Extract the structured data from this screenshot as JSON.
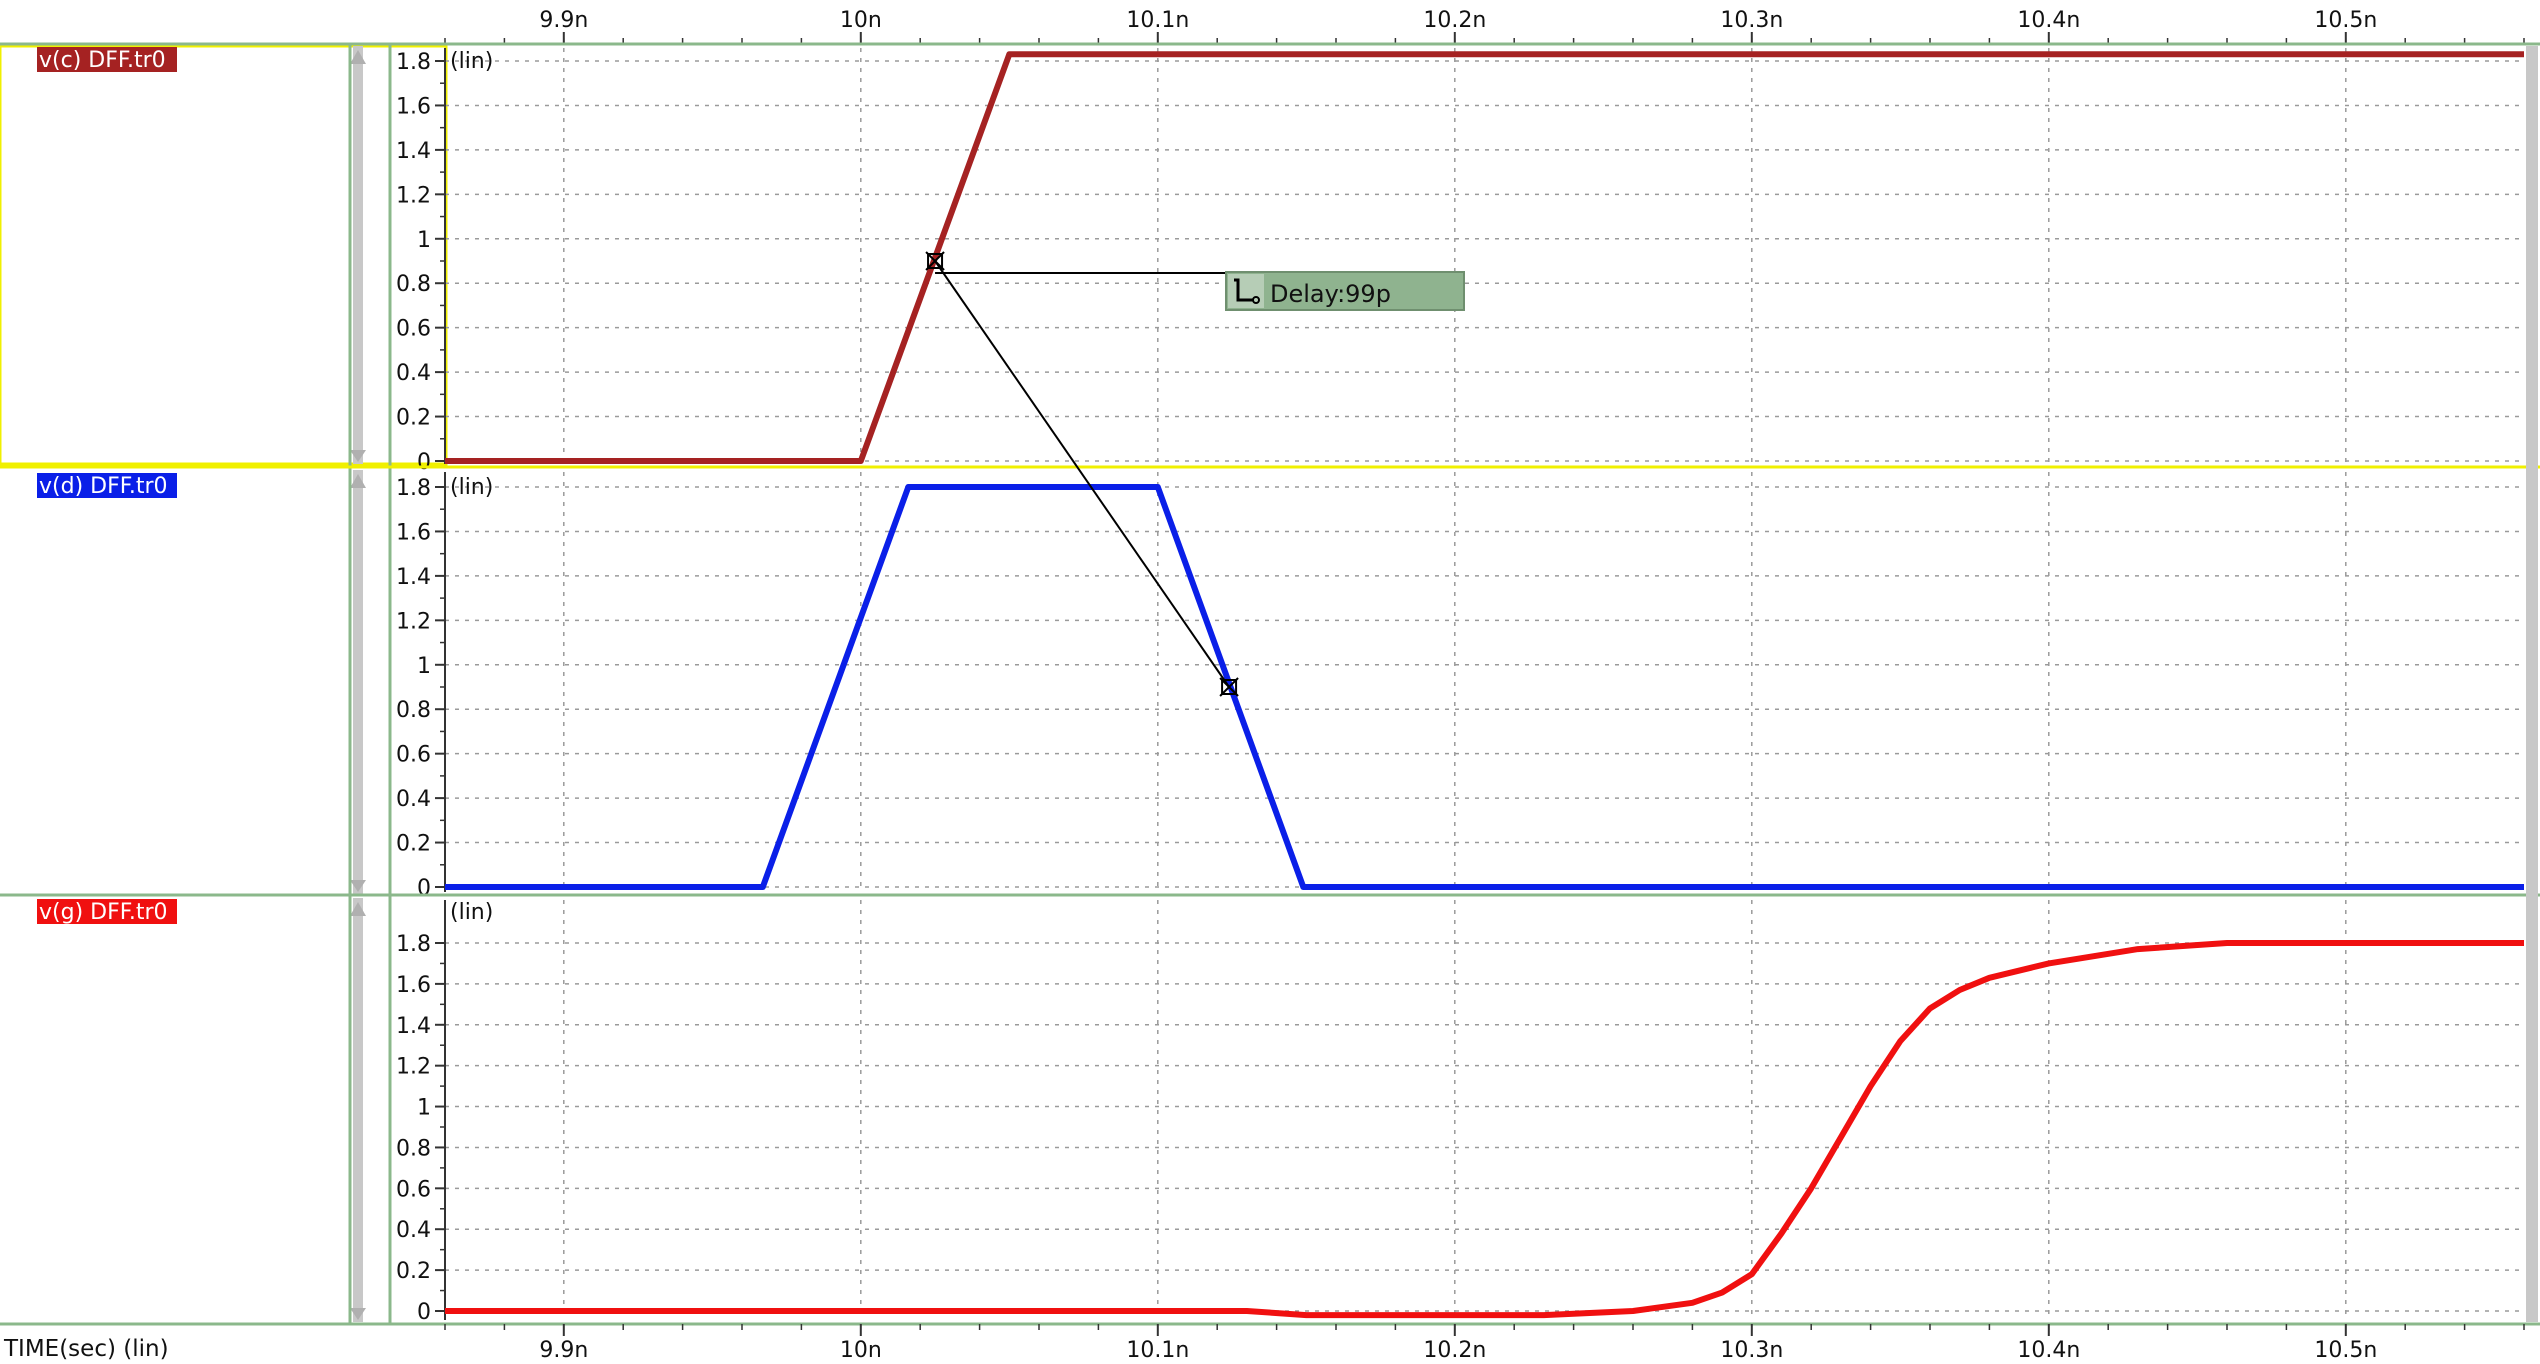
{
  "colors": {
    "background": "#ffffff",
    "grid": "#9a9a9a",
    "panel_divider": "#8bb88b",
    "selected_panel": "#f0f000",
    "scrollbar": "#c8c8c8",
    "marker_line": "#000000",
    "delay_box": "#8fb38f"
  },
  "x_axis": {
    "label": "TIME(sec) (lin)",
    "ticks": [
      {
        "value": 9.9,
        "label": "9.9n"
      },
      {
        "value": 10.0,
        "label": "10n"
      },
      {
        "value": 10.1,
        "label": "10.1n"
      },
      {
        "value": 10.2,
        "label": "10.2n"
      },
      {
        "value": 10.3,
        "label": "10.3n"
      },
      {
        "value": 10.4,
        "label": "10.4n"
      },
      {
        "value": 10.5,
        "label": "10.5n"
      }
    ],
    "range": [
      9.86,
      10.56
    ]
  },
  "measurement": {
    "label": "Delay:99p",
    "icon": "delay-measure-icon",
    "from": {
      "panel": 0,
      "x": 10.025,
      "y": 0.9
    },
    "to": {
      "panel": 1,
      "x": 10.124,
      "y": 0.9
    }
  },
  "chart_data": [
    {
      "type": "line",
      "scale_label": "(lin)",
      "ylim": [
        0,
        1.85
      ],
      "y_ticks": [
        {
          "value": 0,
          "label": "0"
        },
        {
          "value": 0.2,
          "label": "0.2"
        },
        {
          "value": 0.4,
          "label": "0.4"
        },
        {
          "value": 0.6,
          "label": "0.6"
        },
        {
          "value": 0.8,
          "label": "0.8"
        },
        {
          "value": 1,
          "label": "1"
        },
        {
          "value": 1.2,
          "label": "1.2"
        },
        {
          "value": 1.4,
          "label": "1.4"
        },
        {
          "value": 1.6,
          "label": "1.6"
        },
        {
          "value": 1.8,
          "label": "1.8"
        }
      ],
      "series": [
        {
          "name": "v(c) DFF.tr0",
          "color": "#a52222",
          "points": [
            [
              9.86,
              0
            ],
            [
              10.0,
              0
            ],
            [
              10.05,
              1.83
            ],
            [
              10.56,
              1.83
            ]
          ]
        }
      ]
    },
    {
      "type": "line",
      "scale_label": "(lin)",
      "ylim": [
        0,
        1.85
      ],
      "y_ticks": [
        {
          "value": 0,
          "label": "0"
        },
        {
          "value": 0.2,
          "label": "0.2"
        },
        {
          "value": 0.4,
          "label": "0.4"
        },
        {
          "value": 0.6,
          "label": "0.6"
        },
        {
          "value": 0.8,
          "label": "0.8"
        },
        {
          "value": 1,
          "label": "1"
        },
        {
          "value": 1.2,
          "label": "1.2"
        },
        {
          "value": 1.4,
          "label": "1.4"
        },
        {
          "value": 1.6,
          "label": "1.6"
        },
        {
          "value": 1.8,
          "label": "1.8"
        }
      ],
      "series": [
        {
          "name": "v(d) DFF.tr0",
          "color": "#0a1fe8",
          "points": [
            [
              9.86,
              0
            ],
            [
              9.967,
              0
            ],
            [
              10.016,
              1.8
            ],
            [
              10.1,
              1.8
            ],
            [
              10.149,
              0
            ],
            [
              10.56,
              0
            ]
          ]
        }
      ]
    },
    {
      "type": "line",
      "scale_label": "(lin)",
      "ylim": [
        0,
        1.95
      ],
      "y_ticks": [
        {
          "value": 0,
          "label": "0"
        },
        {
          "value": 0.2,
          "label": "0.2"
        },
        {
          "value": 0.4,
          "label": "0.4"
        },
        {
          "value": 0.6,
          "label": "0.6"
        },
        {
          "value": 0.8,
          "label": "0.8"
        },
        {
          "value": 1,
          "label": "1"
        },
        {
          "value": 1.2,
          "label": "1.2"
        },
        {
          "value": 1.4,
          "label": "1.4"
        },
        {
          "value": 1.6,
          "label": "1.6"
        },
        {
          "value": 1.8,
          "label": "1.8"
        }
      ],
      "series": [
        {
          "name": "v(g) DFF.tr0",
          "color": "#f01010",
          "points": [
            [
              9.86,
              0.0
            ],
            [
              10.13,
              0.0
            ],
            [
              10.15,
              -0.02
            ],
            [
              10.2,
              -0.02
            ],
            [
              10.23,
              -0.02
            ],
            [
              10.26,
              0.0
            ],
            [
              10.28,
              0.04
            ],
            [
              10.29,
              0.09
            ],
            [
              10.3,
              0.18
            ],
            [
              10.31,
              0.38
            ],
            [
              10.32,
              0.6
            ],
            [
              10.33,
              0.85
            ],
            [
              10.34,
              1.1
            ],
            [
              10.35,
              1.32
            ],
            [
              10.36,
              1.48
            ],
            [
              10.37,
              1.57
            ],
            [
              10.38,
              1.63
            ],
            [
              10.4,
              1.7
            ],
            [
              10.43,
              1.77
            ],
            [
              10.46,
              1.8
            ],
            [
              10.56,
              1.8
            ]
          ]
        }
      ]
    }
  ]
}
